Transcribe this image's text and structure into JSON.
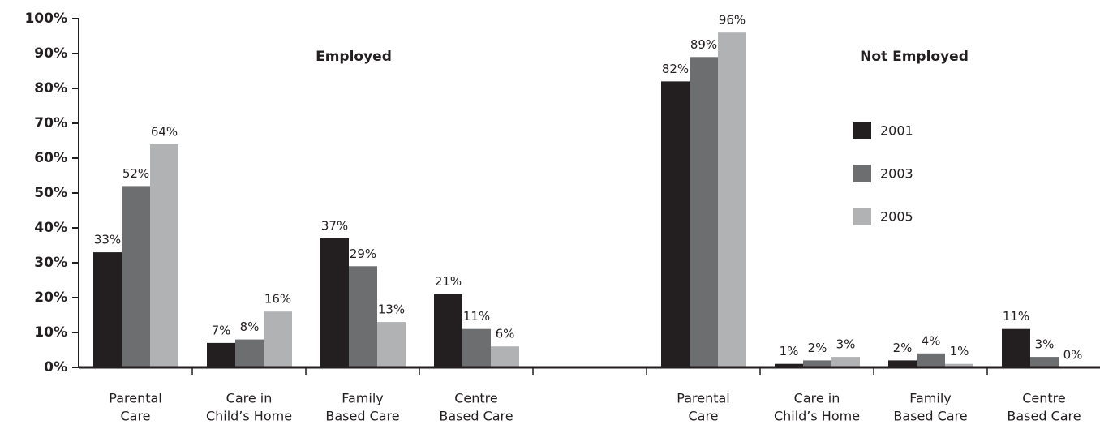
{
  "chart_data": {
    "type": "bar",
    "annotations": [
      "Employed",
      "Not Employed"
    ],
    "categories": [
      [
        "Parental",
        "Care"
      ],
      [
        "Care in",
        "Child’s Home"
      ],
      [
        "Family",
        "Based Care"
      ],
      [
        "Centre",
        "Based Care"
      ],
      null,
      [
        "Parental",
        "Care"
      ],
      [
        "Care in",
        "Child’s Home"
      ],
      [
        "Family",
        "Based Care"
      ],
      [
        "Centre",
        "Based Care"
      ]
    ],
    "series": [
      {
        "name": "2001",
        "color": "#231f20",
        "values": [
          33,
          7,
          37,
          21,
          null,
          82,
          1,
          2,
          11
        ],
        "value_labels": [
          "33%",
          "7%",
          "37%",
          "21%",
          null,
          "82%",
          "1%",
          "2%",
          "11%"
        ]
      },
      {
        "name": "2003",
        "color": "#6d6e70",
        "values": [
          52,
          8,
          29,
          11,
          null,
          89,
          2,
          4,
          3
        ],
        "value_labels": [
          "52%",
          "8%",
          "29%",
          "11%",
          null,
          "89%",
          "2%",
          "4%",
          "3%"
        ]
      },
      {
        "name": "2005",
        "color": "#b1b2b4",
        "values": [
          64,
          16,
          13,
          6,
          null,
          96,
          3,
          1,
          0
        ],
        "value_labels": [
          "64%",
          "16%",
          "13%",
          "6%",
          null,
          "96%",
          "3%",
          "1%",
          "0%"
        ]
      }
    ],
    "ylim": [
      0,
      100
    ],
    "yticks": [
      {
        "value": 0,
        "label": "0%"
      },
      {
        "value": 10,
        "label": "10%"
      },
      {
        "value": 20,
        "label": "20%"
      },
      {
        "value": 30,
        "label": "30%"
      },
      {
        "value": 40,
        "label": "40%"
      },
      {
        "value": 50,
        "label": "50%"
      },
      {
        "value": 60,
        "label": "60%"
      },
      {
        "value": 70,
        "label": "70%"
      },
      {
        "value": 80,
        "label": "80%"
      },
      {
        "value": 90,
        "label": "90%"
      },
      {
        "value": 100,
        "label": "100%"
      }
    ]
  }
}
